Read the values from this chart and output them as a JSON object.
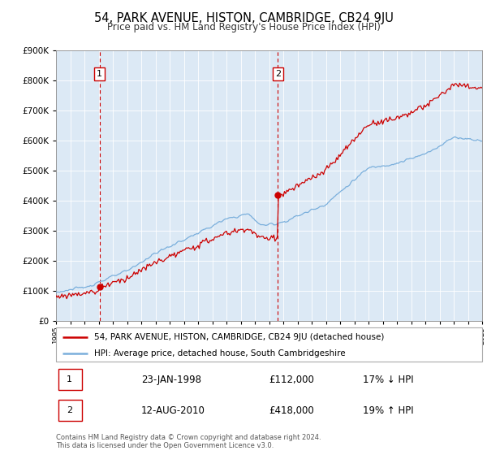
{
  "title": "54, PARK AVENUE, HISTON, CAMBRIDGE, CB24 9JU",
  "subtitle": "Price paid vs. HM Land Registry's House Price Index (HPI)",
  "legend_line1": "54, PARK AVENUE, HISTON, CAMBRIDGE, CB24 9JU (detached house)",
  "legend_line2": "HPI: Average price, detached house, South Cambridgeshire",
  "annotation1_date": "23-JAN-1998",
  "annotation1_price": "£112,000",
  "annotation1_hpi": "17% ↓ HPI",
  "annotation1_year": 1998.06,
  "annotation1_value": 112000,
  "annotation2_date": "12-AUG-2010",
  "annotation2_price": "£418,000",
  "annotation2_hpi": "19% ↑ HPI",
  "annotation2_year": 2010.62,
  "annotation2_value": 418000,
  "xmin": 1995,
  "xmax": 2025,
  "ymin": 0,
  "ymax": 900000,
  "price_color": "#cc0000",
  "hpi_color": "#7aafdc",
  "background_color": "#dce9f5",
  "plot_bg": "#ffffff",
  "grid_color": "#ffffff",
  "copyright": "Contains HM Land Registry data © Crown copyright and database right 2024.\nThis data is licensed under the Open Government Licence v3.0."
}
